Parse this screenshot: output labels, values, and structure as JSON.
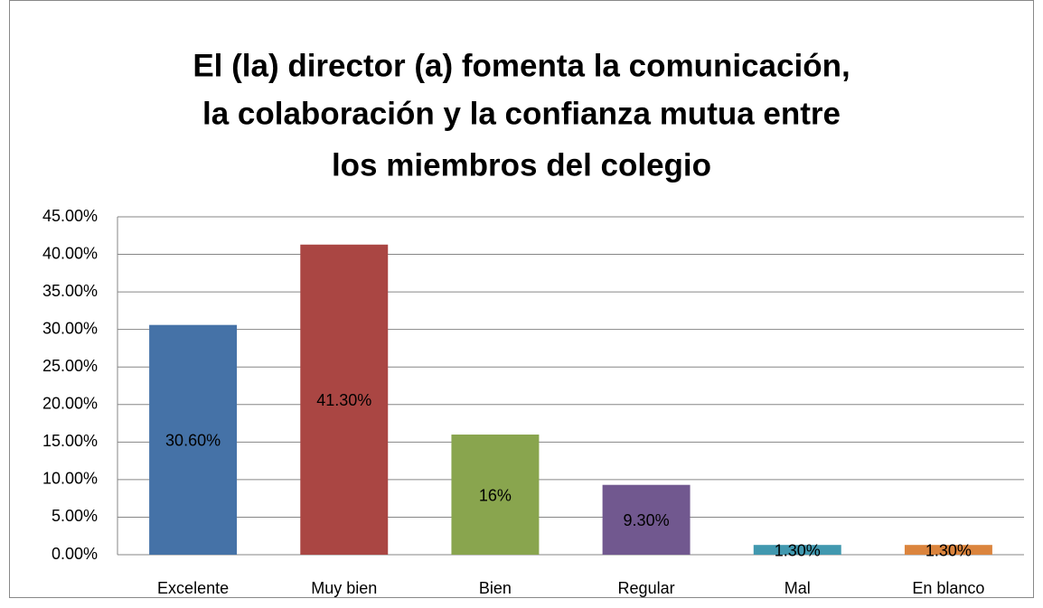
{
  "chart_data": {
    "type": "bar",
    "title": [
      "El (la) director (a) fomenta la comunicación,",
      "la colaboración y la confianza mutua entre",
      "los miembros del colegio"
    ],
    "categories": [
      "Excelente",
      "Muy bien",
      "Bien",
      "Regular",
      "Mal",
      "En blanco"
    ],
    "values": [
      30.6,
      41.3,
      16,
      9.3,
      1.3,
      1.3
    ],
    "value_labels": [
      "30.60%",
      "41.30%",
      "16%",
      "9.30%",
      "1.30%",
      "1.30%"
    ],
    "colors": [
      "#4572a7",
      "#aa4643",
      "#89a54e",
      "#71588f",
      "#4198af",
      "#db843d"
    ],
    "ylim": [
      0,
      45
    ],
    "yticks": [
      {
        "value": 0,
        "label": "0.00%"
      },
      {
        "value": 5,
        "label": "5.00%"
      },
      {
        "value": 10,
        "label": "10.00%"
      },
      {
        "value": 15,
        "label": "15.00%"
      },
      {
        "value": 20,
        "label": "20.00%"
      },
      {
        "value": 25,
        "label": "25.00%"
      },
      {
        "value": 30,
        "label": "30.00%"
      },
      {
        "value": 35,
        "label": "35.00%"
      },
      {
        "value": 40,
        "label": "40.00%"
      },
      {
        "value": 45,
        "label": "45.00%"
      }
    ],
    "grid": true
  }
}
